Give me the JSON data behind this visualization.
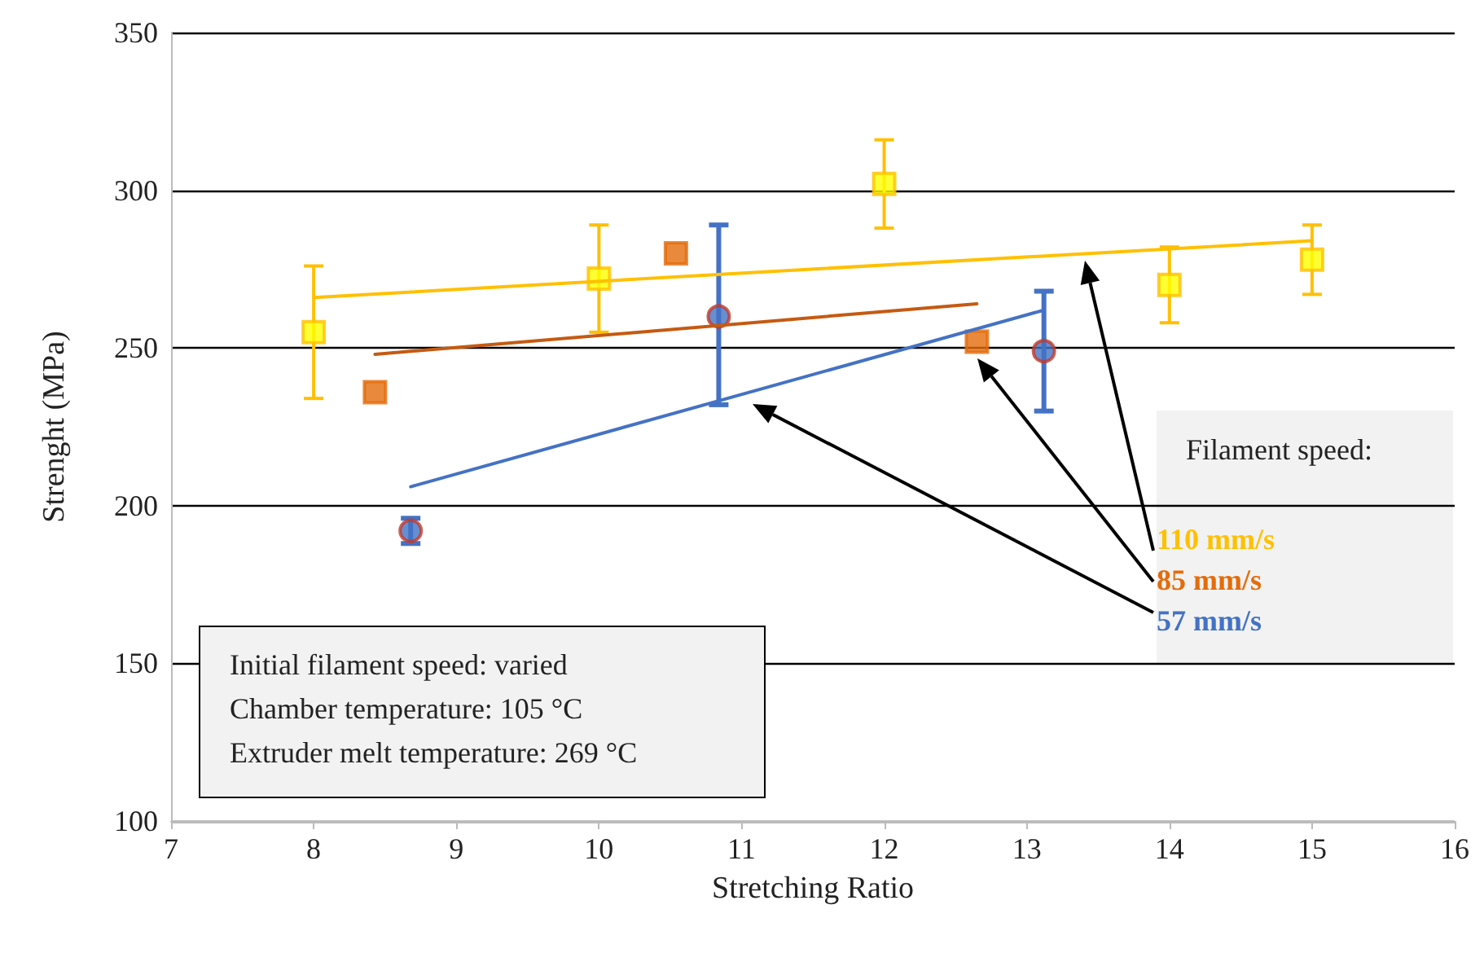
{
  "chart_data": {
    "type": "scatter",
    "xlabel": "Stretching Ratio",
    "ylabel": "Strenght (MPa)",
    "xlim": [
      7,
      16
    ],
    "xticks": [
      7,
      8,
      9,
      10,
      11,
      12,
      13,
      14,
      15,
      16
    ],
    "ylim": [
      100,
      350
    ],
    "yticks": [
      100,
      150,
      200,
      250,
      300,
      350
    ],
    "grid": "y",
    "legend": false,
    "annotations": [
      "Filament speed:",
      "Initial filament speed: varied\nChamber temperature: 105 °C\nExtruder melt temperature: 269 °C"
    ],
    "series": [
      {
        "name": "110 mm/s",
        "color": "#ffc000",
        "marker": "square",
        "x": [
          8,
          10,
          12,
          14,
          15
        ],
        "values": [
          255,
          272,
          302,
          270,
          278
        ],
        "errors": [
          [
            234,
            276
          ],
          [
            255,
            289
          ],
          [
            288,
            316
          ],
          [
            258,
            282
          ],
          [
            267,
            289
          ]
        ]
      },
      {
        "name": "85 mm/s",
        "color": "#e46c0a",
        "marker": "square",
        "x": [
          8.43,
          10.54,
          12.65
        ],
        "values": [
          236,
          280,
          252
        ]
      },
      {
        "name": "57 mm/s",
        "color": "#4472c4",
        "marker": "circle",
        "x": [
          8.68,
          10.84,
          13.12
        ],
        "values": [
          192,
          260,
          249
        ],
        "errors": [
          [
            188,
            196
          ],
          [
            232,
            289
          ],
          [
            230,
            268
          ]
        ]
      },
      {
        "type": "line",
        "color": "#ffc000",
        "x": [
          8,
          15
        ],
        "values": [
          266,
          284
        ]
      },
      {
        "type": "line",
        "color": "#c55a11",
        "x": [
          8.43,
          12.65
        ],
        "values": [
          248,
          264
        ]
      },
      {
        "type": "line",
        "color": "#4472c4",
        "x": [
          8.68,
          13.12
        ],
        "values": [
          206,
          262
        ]
      }
    ]
  }
}
